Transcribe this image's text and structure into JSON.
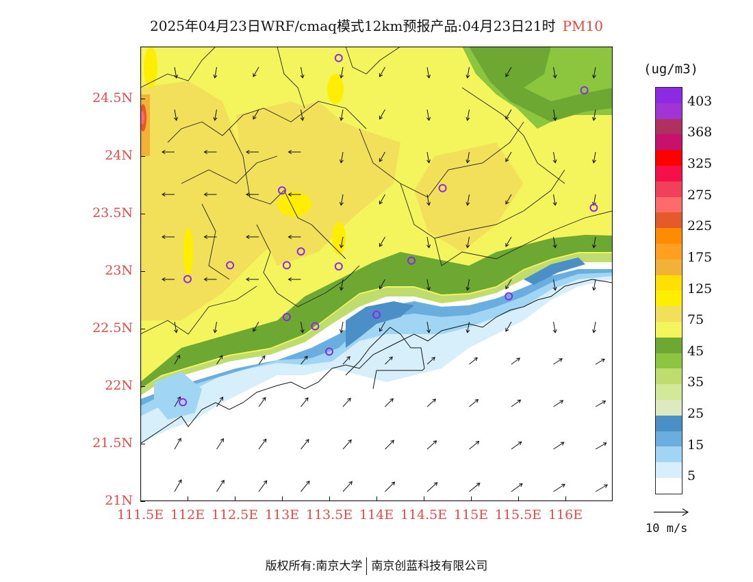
{
  "title": {
    "main": "2025年04月23日WRF/cmaq模式12km预报产品:04月23日21时",
    "variable": "PM10"
  },
  "colorbar": {
    "units": "(ug/m3)",
    "labels": [
      "403",
      "368",
      "325",
      "275",
      "225",
      "175",
      "125",
      "75",
      "45",
      "35",
      "25",
      "15",
      "5"
    ],
    "bands": [
      "#8c2be2",
      "#a034d4",
      "#b03060",
      "#c8106e",
      "#ff0000",
      "#f5104a",
      "#f0405a",
      "#ff6a6a",
      "#e45a28",
      "#ff8c00",
      "#ffa020",
      "#f2b237",
      "#ffe000",
      "#ffee00",
      "#f2e05a",
      "#f4f55c",
      "#6da832",
      "#8cc63f",
      "#bfdc6e",
      "#d2e99a",
      "#dfe9c0",
      "#4a90c6",
      "#6aaee0",
      "#a0d6f3",
      "#d6effb",
      "#ffffff"
    ]
  },
  "axes": {
    "y_ticks": [
      "24.5N",
      "24N",
      "23.5N",
      "23N",
      "22.5N",
      "22N",
      "21.5N",
      "21N"
    ],
    "x_ticks": [
      "111.5E",
      "112E",
      "112.5E",
      "113E",
      "113.5E",
      "114E",
      "114.5E",
      "115E",
      "115.5E",
      "116E"
    ]
  },
  "map": {
    "extent_lon": [
      111.5,
      116.5
    ],
    "extent_lat": [
      21.0,
      24.95
    ],
    "stations": [
      [
        113.6,
        24.85
      ],
      [
        116.2,
        24.57
      ],
      [
        113.0,
        23.7
      ],
      [
        114.7,
        23.72
      ],
      [
        116.3,
        23.55
      ],
      [
        112.45,
        23.05
      ],
      [
        113.05,
        23.05
      ],
      [
        113.2,
        23.17
      ],
      [
        113.6,
        23.04
      ],
      [
        114.37,
        23.09
      ],
      [
        112.0,
        22.93
      ],
      [
        113.05,
        22.6
      ],
      [
        113.35,
        22.52
      ],
      [
        114.0,
        22.62
      ],
      [
        115.4,
        22.78
      ],
      [
        113.5,
        22.3
      ],
      [
        111.95,
        21.86
      ]
    ]
  },
  "wind_scale": {
    "label": "10 m/s"
  },
  "footer": {
    "left": "版权所有:南京大学",
    "right": "南京创蓝科技有限公司"
  }
}
